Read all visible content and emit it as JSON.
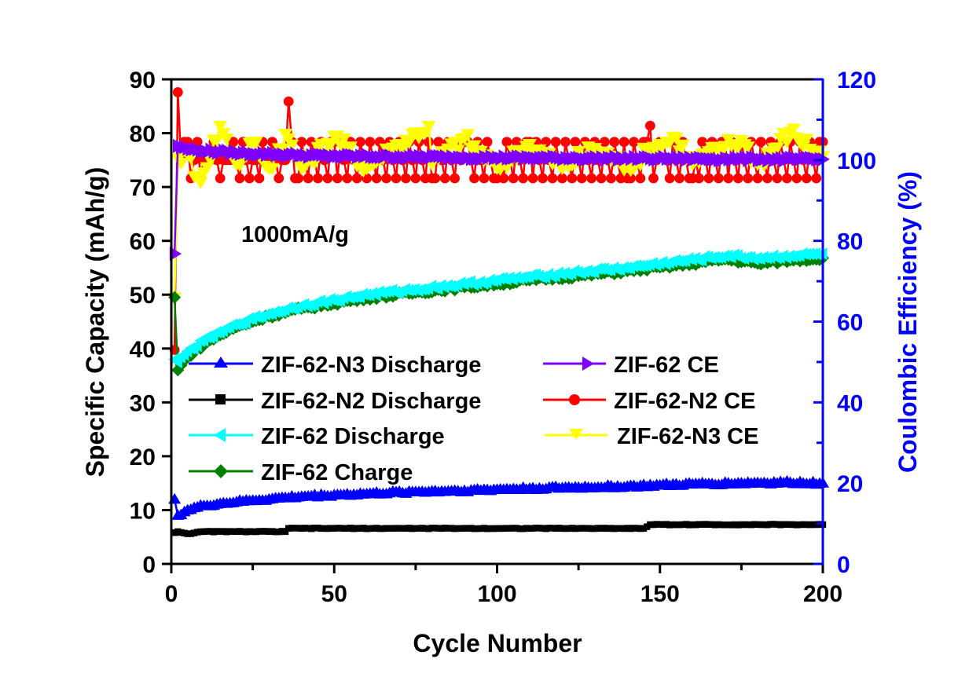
{
  "chart_data": {
    "type": "line",
    "title": "",
    "xlabel": "Cycle Number",
    "ylabel": "Specific Capacity (mAh/g)",
    "y2label": "Coulombic Efficiency (%)",
    "xlim": [
      0,
      200
    ],
    "ylim": [
      0,
      90
    ],
    "y2lim": [
      0,
      120
    ],
    "xticks": [
      0,
      50,
      100,
      150,
      200
    ],
    "yticks": [
      0,
      10,
      20,
      30,
      40,
      50,
      60,
      70,
      80,
      90
    ],
    "y2ticks": [
      0,
      20,
      40,
      60,
      80,
      100,
      120
    ],
    "grid": false,
    "annotation": "1000mA/g",
    "colors": {
      "left_axis": "#000000",
      "right_axis": "#0000ff"
    },
    "legend": {
      "placement": "center",
      "left_column": [
        "ZIF-62-N3 Discharge",
        "ZIF-62-N2 Discharge",
        "ZIF-62 Discharge",
        "ZIF-62 Charge"
      ],
      "right_column": [
        "ZIF-62 CE",
        "ZIF-62-N2 CE",
        "ZIF-62-N3 CE"
      ]
    },
    "series": [
      {
        "name": "ZIF-62-N3 Discharge",
        "axis": "left",
        "color": "#0000ff",
        "marker": "triangle-up",
        "x": [
          1,
          2,
          5,
          10,
          15,
          20,
          25,
          30,
          35,
          40,
          50,
          60,
          75,
          90,
          100,
          110,
          125,
          140,
          150,
          160,
          175,
          190,
          200
        ],
        "values": [
          12.0,
          9.0,
          10.0,
          10.8,
          11.2,
          11.5,
          11.8,
          12.0,
          12.3,
          12.5,
          12.8,
          13.0,
          13.4,
          13.6,
          13.8,
          14.0,
          14.2,
          14.4,
          14.6,
          14.8,
          15.0,
          15.1,
          15.0
        ]
      },
      {
        "name": "ZIF-62-N2 Discharge",
        "axis": "left",
        "color": "#000000",
        "marker": "square",
        "x": [
          1,
          2,
          5,
          10,
          20,
          30,
          35,
          36,
          50,
          75,
          100,
          125,
          145,
          147,
          160,
          175,
          190,
          200
        ],
        "values": [
          5.8,
          6.0,
          5.6,
          6.0,
          6.0,
          6.0,
          6.0,
          6.6,
          6.6,
          6.6,
          6.6,
          6.6,
          6.6,
          7.3,
          7.3,
          7.3,
          7.3,
          7.3
        ]
      },
      {
        "name": "ZIF-62 Discharge",
        "axis": "left",
        "color": "#00ffff",
        "marker": "triangle-left",
        "x": [
          1,
          2,
          5,
          10,
          15,
          20,
          25,
          30,
          40,
          50,
          60,
          75,
          90,
          100,
          110,
          125,
          140,
          150,
          160,
          170,
          180,
          190,
          200
        ],
        "values": [
          38.0,
          37.5,
          39.5,
          41.5,
          43.0,
          44.5,
          45.5,
          46.5,
          48.0,
          49.0,
          50.0,
          51.0,
          52.0,
          52.7,
          53.3,
          54.2,
          55.0,
          55.8,
          56.5,
          57.2,
          56.8,
          57.2,
          57.6
        ]
      },
      {
        "name": "ZIF-62 Charge",
        "axis": "left",
        "color": "#008000",
        "marker": "diamond",
        "x": [
          1,
          2,
          5,
          10,
          15,
          20,
          25,
          30,
          40,
          50,
          60,
          75,
          90,
          100,
          110,
          125,
          140,
          150,
          160,
          170,
          180,
          190,
          200
        ],
        "values": [
          49.5,
          36.0,
          38.5,
          40.8,
          42.5,
          44.0,
          45.0,
          46.0,
          47.4,
          48.4,
          49.4,
          50.4,
          51.4,
          52.0,
          52.7,
          53.5,
          54.4,
          55.1,
          55.8,
          56.6,
          55.8,
          56.4,
          56.8
        ]
      },
      {
        "name": "ZIF-62 CE",
        "axis": "right",
        "color": "#7f00ff",
        "marker": "triangle-right",
        "x": [
          1,
          2,
          5,
          10,
          20,
          30,
          40,
          50,
          75,
          100,
          125,
          150,
          175,
          200
        ],
        "values": [
          76.8,
          103.5,
          102.8,
          102.3,
          101.8,
          101.5,
          101.2,
          101.0,
          100.8,
          100.6,
          100.5,
          100.4,
          100.3,
          100.2
        ]
      },
      {
        "name": "ZIF-62-N2 CE",
        "axis": "right",
        "color": "#ff0000",
        "marker": "circle",
        "x": [
          1,
          2,
          3,
          4,
          5,
          6,
          7,
          8,
          10,
          12,
          14,
          15,
          16,
          18,
          20,
          25,
          28,
          30,
          34,
          35,
          36,
          37,
          38,
          40,
          42,
          45,
          50,
          60,
          70,
          80,
          90,
          100,
          110,
          120,
          130,
          140,
          146,
          147,
          148,
          150,
          160,
          170,
          180,
          190,
          195,
          200
        ],
        "values": [
          53.0,
          116.8,
          100.0,
          104.5,
          104.5,
          95.5,
          100.0,
          104.5,
          100.0,
          100.0,
          100.0,
          95.5,
          100.0,
          100.0,
          100.0,
          100.0,
          104.5,
          100.0,
          100.0,
          100.0,
          114.5,
          104.5,
          95.5,
          104.5,
          95.5,
          95.5,
          104.5,
          95.5,
          104.5,
          95.5,
          104.5,
          95.5,
          104.5,
          95.5,
          104.5,
          95.5,
          104.5,
          108.5,
          95.5,
          104.5,
          95.5,
          104.5,
          95.5,
          104.5,
          95.5,
          104.5
        ]
      },
      {
        "name": "ZIF-62-N3 CE",
        "axis": "right",
        "color": "#ffff00",
        "marker": "triangle-down",
        "x": [
          1,
          2,
          5,
          8,
          9,
          10,
          15,
          20,
          25,
          30,
          35,
          40,
          50,
          60,
          70,
          79,
          80,
          90,
          100,
          110,
          120,
          130,
          140,
          150,
          155,
          160,
          170,
          175,
          180,
          190,
          200
        ],
        "values": [
          66.0,
          100.5,
          101.5,
          96.0,
          94.5,
          97.0,
          108.5,
          99.0,
          104.5,
          98.0,
          106.5,
          98.0,
          106.0,
          98.0,
          104.0,
          108.5,
          99.0,
          105.5,
          98.0,
          104.0,
          98.0,
          103.0,
          98.5,
          104.0,
          105.5,
          99.0,
          103.5,
          105.0,
          99.0,
          107.0,
          101.0
        ]
      }
    ]
  }
}
